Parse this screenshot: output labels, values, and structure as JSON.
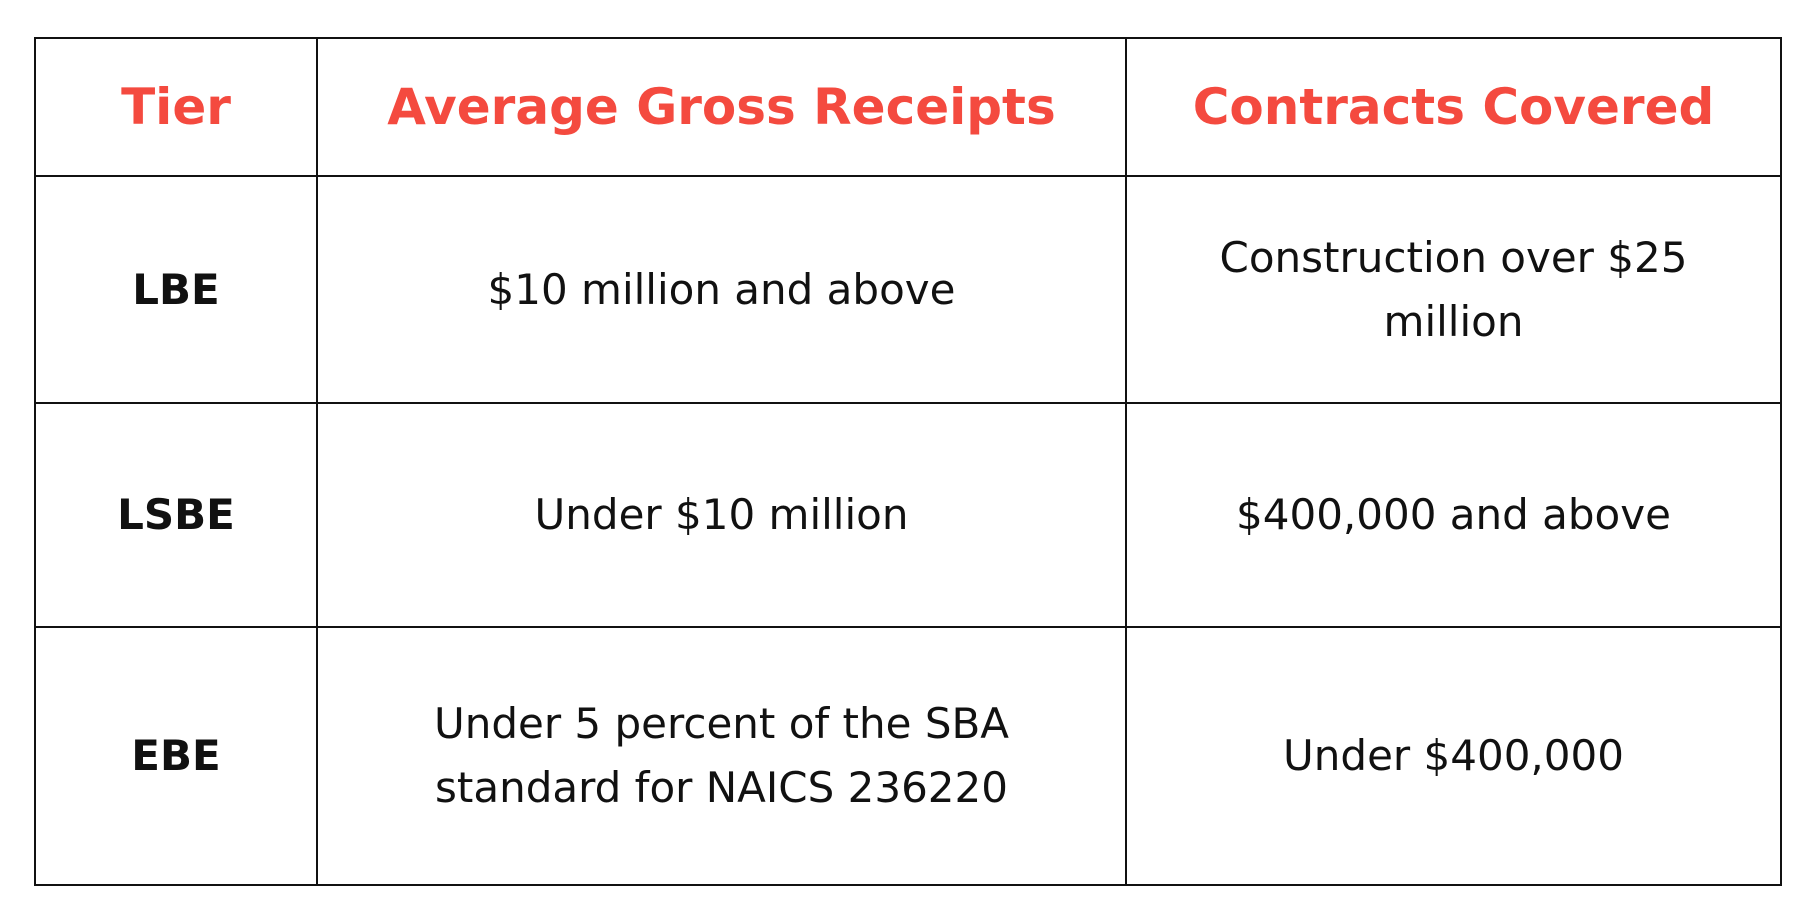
{
  "table": {
    "headers": [
      "Tier",
      "Average Gross Receipts",
      "Contracts Covered"
    ],
    "rows": [
      [
        "LBE",
        "$10 million and above",
        "Construction over $25 million"
      ],
      [
        "LSBE",
        "Under $10 million",
        "$400,000 and above"
      ],
      [
        "EBE",
        "Under 5 percent of the SBA standard for NAICS 236220",
        "Under $400,000"
      ]
    ]
  }
}
